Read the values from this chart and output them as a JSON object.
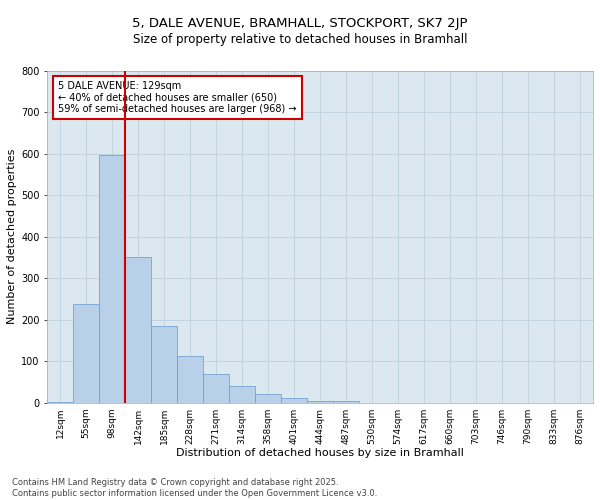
{
  "title_line1": "5, DALE AVENUE, BRAMHALL, STOCKPORT, SK7 2JP",
  "title_line2": "Size of property relative to detached houses in Bramhall",
  "xlabel": "Distribution of detached houses by size in Bramhall",
  "ylabel": "Number of detached properties",
  "categories": [
    "12sqm",
    "55sqm",
    "98sqm",
    "142sqm",
    "185sqm",
    "228sqm",
    "271sqm",
    "314sqm",
    "358sqm",
    "401sqm",
    "444sqm",
    "487sqm",
    "530sqm",
    "574sqm",
    "617sqm",
    "660sqm",
    "703sqm",
    "746sqm",
    "790sqm",
    "833sqm",
    "876sqm"
  ],
  "values": [
    2,
    237,
    598,
    352,
    185,
    113,
    68,
    40,
    20,
    12,
    4,
    3,
    0,
    0,
    0,
    0,
    0,
    0,
    0,
    0,
    0
  ],
  "bar_color": "#b8d0e8",
  "bar_edge_color": "#6699cc",
  "vline_color": "#cc0000",
  "annotation_text": "5 DALE AVENUE: 129sqm\n← 40% of detached houses are smaller (650)\n59% of semi-detached houses are larger (968) →",
  "annotation_box_color": "#ffffff",
  "annotation_box_edge": "#cc0000",
  "ylim": [
    0,
    800
  ],
  "yticks": [
    0,
    100,
    200,
    300,
    400,
    500,
    600,
    700,
    800
  ],
  "background_color": "#dce8f0",
  "footer_line1": "Contains HM Land Registry data © Crown copyright and database right 2025.",
  "footer_line2": "Contains public sector information licensed under the Open Government Licence v3.0.",
  "title_fontsize": 9.5,
  "subtitle_fontsize": 8.5,
  "axis_label_fontsize": 8,
  "tick_fontsize": 7,
  "footer_fontsize": 6,
  "annotation_fontsize": 7
}
